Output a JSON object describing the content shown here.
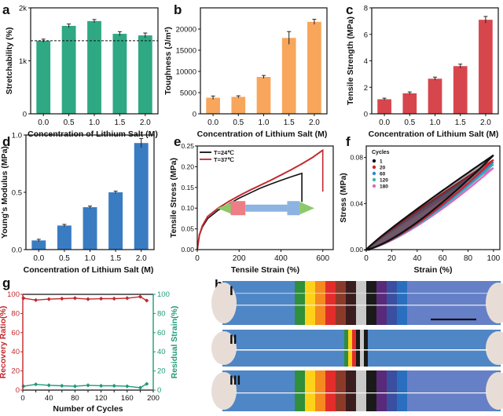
{
  "colors": {
    "green": "#2fa884",
    "orange": "#f7a65b",
    "red": "#d8464d",
    "blue": "#3a7cc2",
    "dark_red": "#c0282e",
    "teal": "#1f9a78",
    "black": "#111111"
  },
  "chart_data": [
    {
      "panel": "a",
      "type": "bar",
      "categories": [
        "0.0",
        "0.5",
        "1.0",
        "1.5",
        "2.0"
      ],
      "values": [
        1380,
        1660,
        1750,
        1510,
        1480
      ],
      "errors": [
        30,
        35,
        30,
        40,
        45
      ],
      "reference_line": 1380,
      "ylim": [
        0,
        2000
      ],
      "yticks": [
        0,
        1000,
        2000
      ],
      "ytick_labels": [
        "0",
        "1k",
        "2k"
      ],
      "xlabel": "Concentration of Lithium Salt (M)",
      "ylabel": "Stretchability (%)"
    },
    {
      "panel": "b",
      "type": "bar",
      "categories": [
        "0.0",
        "0.5",
        "1.0",
        "1.5",
        "2.0"
      ],
      "values": [
        3800,
        4000,
        8700,
        17900,
        21700
      ],
      "errors": [
        400,
        250,
        350,
        1500,
        600
      ],
      "ylim": [
        0,
        25000
      ],
      "yticks": [
        0,
        5000,
        10000,
        15000,
        20000
      ],
      "ytick_labels": [
        "0",
        "5000",
        "10000",
        "15000",
        "20000"
      ],
      "xlabel": "Concentration of Lithium Salt (M)",
      "ylabel": "Toughness (J/m²)"
    },
    {
      "panel": "c",
      "type": "bar",
      "categories": [
        "0.0",
        "0.5",
        "1.0",
        "1.5",
        "2.0"
      ],
      "values": [
        1.1,
        1.55,
        2.65,
        3.6,
        7.1
      ],
      "errors": [
        0.08,
        0.1,
        0.12,
        0.15,
        0.25
      ],
      "ylim": [
        0,
        8
      ],
      "yticks": [
        0,
        2,
        4,
        6,
        8
      ],
      "ytick_labels": [
        "0",
        "2",
        "4",
        "6",
        "8"
      ],
      "xlabel": "Concentration of Lithium Salt (M)",
      "ylabel": "Tensile Strength (MPa)"
    },
    {
      "panel": "d",
      "type": "bar",
      "categories": [
        "0.0",
        "0.5",
        "1.0",
        "1.5",
        "2.0"
      ],
      "values": [
        0.08,
        0.21,
        0.37,
        0.5,
        0.93
      ],
      "errors": [
        0.01,
        0.01,
        0.01,
        0.01,
        0.04
      ],
      "ylim": [
        0,
        1.0
      ],
      "yticks": [
        0,
        0.5,
        1.0
      ],
      "ytick_labels": [
        "0.0",
        "0.5",
        "1.0"
      ],
      "xlabel": "Concentration of Lithium Salt (M)",
      "ylabel": "Young's Modulus (MPa)"
    },
    {
      "panel": "e",
      "type": "line",
      "xlabel": "Tensile Strain (%)",
      "ylabel": "Tensile Stress (MPa)",
      "xlim": [
        0,
        650
      ],
      "ylim": [
        0,
        0.25
      ],
      "xticks": [
        0,
        200,
        400,
        600
      ],
      "xtick_labels": [
        "0",
        "200",
        "400",
        "600"
      ],
      "yticks": [
        0,
        0.05,
        0.1,
        0.15,
        0.2,
        0.25
      ],
      "ytick_labels": [
        "0.00",
        "0.05",
        "0.10",
        "0.15",
        "0.20",
        "0.25"
      ],
      "legend_position": "top-left",
      "series": [
        {
          "name": "T=24℃",
          "color": "#111111",
          "x": [
            0,
            10,
            25,
            50,
            100,
            150,
            200,
            250,
            300,
            350,
            400,
            450,
            500,
            500
          ],
          "y": [
            0,
            0.035,
            0.055,
            0.075,
            0.095,
            0.11,
            0.124,
            0.136,
            0.148,
            0.158,
            0.167,
            0.176,
            0.184,
            0.115
          ]
        },
        {
          "name": "T=37℃",
          "color": "#c0282e",
          "x": [
            0,
            10,
            25,
            50,
            100,
            150,
            200,
            250,
            300,
            350,
            400,
            450,
            500,
            550,
            600,
            600
          ],
          "y": [
            0,
            0.035,
            0.058,
            0.08,
            0.1,
            0.116,
            0.13,
            0.143,
            0.155,
            0.167,
            0.18,
            0.193,
            0.207,
            0.222,
            0.24,
            0.14
          ]
        }
      ]
    },
    {
      "panel": "f",
      "type": "line",
      "xlabel": "Strain (%)",
      "ylabel": "Stress (MPa)",
      "xlim": [
        0,
        105
      ],
      "ylim": [
        0,
        0.09
      ],
      "xticks": [
        0,
        20,
        40,
        60,
        80,
        100
      ],
      "xtick_labels": [
        "0",
        "20",
        "40",
        "60",
        "80",
        "100"
      ],
      "yticks": [
        0,
        0.04,
        0.08
      ],
      "ytick_labels": [
        "0.00",
        "0.04",
        "0.08"
      ],
      "legend_title": "Cycles",
      "legend_position": "top-left",
      "series": [
        {
          "name": "1",
          "color": "#111111",
          "peak": 0.082
        },
        {
          "name": "20",
          "color": "#d0232a",
          "peak": 0.078
        },
        {
          "name": "60",
          "color": "#2f8ad0",
          "peak": 0.076
        },
        {
          "name": "120",
          "color": "#3fb8a8",
          "peak": 0.074
        },
        {
          "name": "180",
          "color": "#e066c8",
          "peak": 0.071
        }
      ]
    },
    {
      "panel": "g",
      "type": "line",
      "xlabel": "Number of Cycles",
      "ylabel": "Recovery Ratio(%)",
      "y2label": "Residual Strain(%)",
      "xlim": [
        0,
        200
      ],
      "ylim": [
        0,
        100
      ],
      "y2lim": [
        0,
        100
      ],
      "xticks": [
        0,
        20,
        40,
        60,
        80,
        100,
        120,
        140,
        160,
        180,
        200
      ],
      "xtick_labels": [
        "0",
        "20",
        "40",
        "60",
        "80",
        "100",
        "120",
        "140",
        "160",
        "180",
        "200"
      ],
      "yticks": [
        0,
        20,
        40,
        60,
        80,
        100
      ],
      "ytick_labels": [
        "0",
        "20",
        "40",
        "60",
        "80",
        "100"
      ],
      "series": [
        {
          "name": "Recovery Ratio(%)",
          "axis": "left",
          "color": "#c0282e",
          "x": [
            1,
            20,
            40,
            60,
            80,
            100,
            120,
            140,
            160,
            180,
            190
          ],
          "y": [
            96,
            94,
            95,
            95.5,
            96,
            95,
            95.5,
            95.5,
            96,
            97.5,
            93.5
          ]
        },
        {
          "name": "Residual Strain(%)",
          "axis": "right",
          "color": "#1f9a78",
          "x": [
            1,
            20,
            40,
            60,
            80,
            100,
            120,
            140,
            160,
            180,
            190
          ],
          "y": [
            4,
            6,
            5,
            4.5,
            4,
            5,
            4.5,
            4.5,
            4,
            2.5,
            6.5
          ]
        }
      ]
    }
  ],
  "panel_h": {
    "labels": [
      "I",
      "II",
      "III"
    ]
  },
  "panel_letters": [
    "a",
    "b",
    "c",
    "d",
    "e",
    "f",
    "g",
    "h"
  ]
}
